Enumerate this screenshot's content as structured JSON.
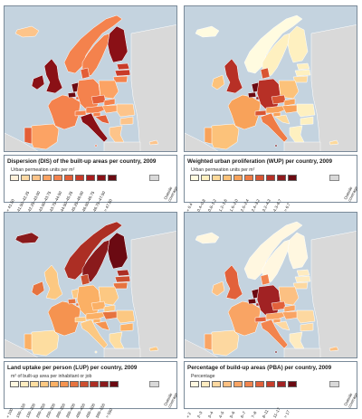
{
  "panels": [
    {
      "id": "dis",
      "title": "Dispersion (DIS) of the built-up areas per country, 2009",
      "unit": "Urban permeation units per m²",
      "legend": [
        "< 41.50",
        "41.50–42.25",
        "42.25–43.00",
        "43.00–43.75",
        "43.75–44.50",
        "44.50–45.25",
        "45.25–46.00",
        "46.00–46.75",
        "46.75–47.50",
        "> 47.50"
      ],
      "colors": [
        "#fef0d9",
        "#fdd9a4",
        "#fdc48a",
        "#fca364",
        "#f4824d",
        "#e35e37",
        "#c93a28",
        "#a91c1e",
        "#8a1016",
        "#6b0a12"
      ],
      "outside": "Outside\ncoverage",
      "outside_color": "#d9d9d9",
      "countries": {
        "IS": 2,
        "NO": 4,
        "SE": 4,
        "FI": 8,
        "EE": 6,
        "LV": 6,
        "LT": 4,
        "UK": 8,
        "IE": 8,
        "FR": 4,
        "ES": 3,
        "PT": 5,
        "BE": 9,
        "NL": 9,
        "LU": 5,
        "DE": 4,
        "DK": 5,
        "CH": 4,
        "AT": 4,
        "IT": 8,
        "PL": 3,
        "CZ": 5,
        "SK": 4,
        "HU": 3,
        "SI": 4,
        "HR": 5,
        "RO": 2,
        "BG": 2,
        "GR": 2,
        "CY": 2,
        "MT": 5
      }
    },
    {
      "id": "wup",
      "title": "Weighted urban proliferation (WUP) per country, 2009",
      "unit": "Urban permeation units per m²",
      "legend": [
        "< 0.4",
        "0.4–0.8",
        "0.8–1.2",
        "1.2–1.6",
        "1.6–2.0",
        "2.0–2.4",
        "2.4–3.2",
        "3.2–4.3",
        "4.3–6.7",
        "> 6.7"
      ],
      "colors": [
        "#fffbe0",
        "#fef0c0",
        "#fdd99a",
        "#fcc27a",
        "#f8a25a",
        "#ef7b45",
        "#d95533",
        "#b73026",
        "#8f1a1d",
        "#6b0a12"
      ],
      "outside": "Outside\ncoverage",
      "outside_color": "#d9d9d9",
      "countries": {
        "IS": 0,
        "NO": 0,
        "SE": 1,
        "FI": 1,
        "EE": 1,
        "LV": 1,
        "LT": 2,
        "UK": 7,
        "IE": 3,
        "FR": 4,
        "ES": 3,
        "PT": 4,
        "BE": 9,
        "NL": 9,
        "LU": 8,
        "DE": 7,
        "DK": 6,
        "CH": 6,
        "AT": 4,
        "IT": 5,
        "PL": 3,
        "CZ": 6,
        "SK": 4,
        "HU": 4,
        "SI": 4,
        "HR": 2,
        "RO": 1,
        "BG": 1,
        "GR": 1,
        "CY": 2,
        "MT": 9
      }
    },
    {
      "id": "lup",
      "title": "Land uptake per person (LUP) per country, 2009",
      "unit": "m² of built-up area per inhabitant or job",
      "legend": [
        "< 100",
        "100–150",
        "150–200",
        "200–250",
        "250–300",
        "300–350",
        "350–400",
        "400–450",
        "450–500",
        "500–550",
        "> 550"
      ],
      "colors": [
        "#fff7e0",
        "#feecc0",
        "#fddda0",
        "#fcc882",
        "#fbb065",
        "#f59350",
        "#e6733f",
        "#cc4f30",
        "#ac2e24",
        "#8a1a1c",
        "#6b0a12"
      ],
      "outside": "Outside\ncoverage",
      "outside_color": "#d9d9d9",
      "countries": {
        "IS": 9,
        "NO": 8,
        "SE": 9,
        "FI": 10,
        "EE": 8,
        "LV": 7,
        "LT": 6,
        "UK": 3,
        "IE": 6,
        "FR": 5,
        "ES": 2,
        "PT": 4,
        "BE": 6,
        "NL": 3,
        "LU": 6,
        "DE": 4,
        "DK": 7,
        "CH": 3,
        "AT": 4,
        "IT": 3,
        "PL": 3,
        "CZ": 4,
        "SK": 3,
        "HU": 6,
        "SI": 4,
        "HR": 5,
        "RO": 3,
        "BG": 4,
        "GR": 2,
        "CY": 3,
        "MT": 1
      }
    },
    {
      "id": "pba",
      "title": "Percentage of build-up areas (PBA) per country, 2009",
      "unit": "Percentage",
      "legend": [
        "< 2",
        "2–3",
        "3–4",
        "4–5",
        "5–6",
        "6–7",
        "7–8",
        "8–11",
        "11–17",
        "> 17"
      ],
      "colors": [
        "#fff7e0",
        "#feebc0",
        "#fdd8a0",
        "#fcc082",
        "#f9a464",
        "#f2844e",
        "#e2613b",
        "#c73e2c",
        "#a12223",
        "#6b0a12"
      ],
      "outside": "Outside\ncoverage",
      "outside_color": "#d9d9d9",
      "countries": {
        "IS": 0,
        "NO": 0,
        "SE": 0,
        "FI": 0,
        "EE": 1,
        "LV": 1,
        "LT": 2,
        "UK": 6,
        "IE": 3,
        "FR": 4,
        "ES": 2,
        "PT": 4,
        "BE": 9,
        "NL": 9,
        "LU": 8,
        "DE": 8,
        "DK": 5,
        "CH": 6,
        "AT": 4,
        "IT": 5,
        "PL": 3,
        "CZ": 6,
        "SK": 4,
        "HU": 4,
        "SI": 4,
        "HR": 2,
        "RO": 2,
        "BG": 2,
        "GR": 1,
        "CY": 3,
        "MT": 9
      }
    }
  ]
}
